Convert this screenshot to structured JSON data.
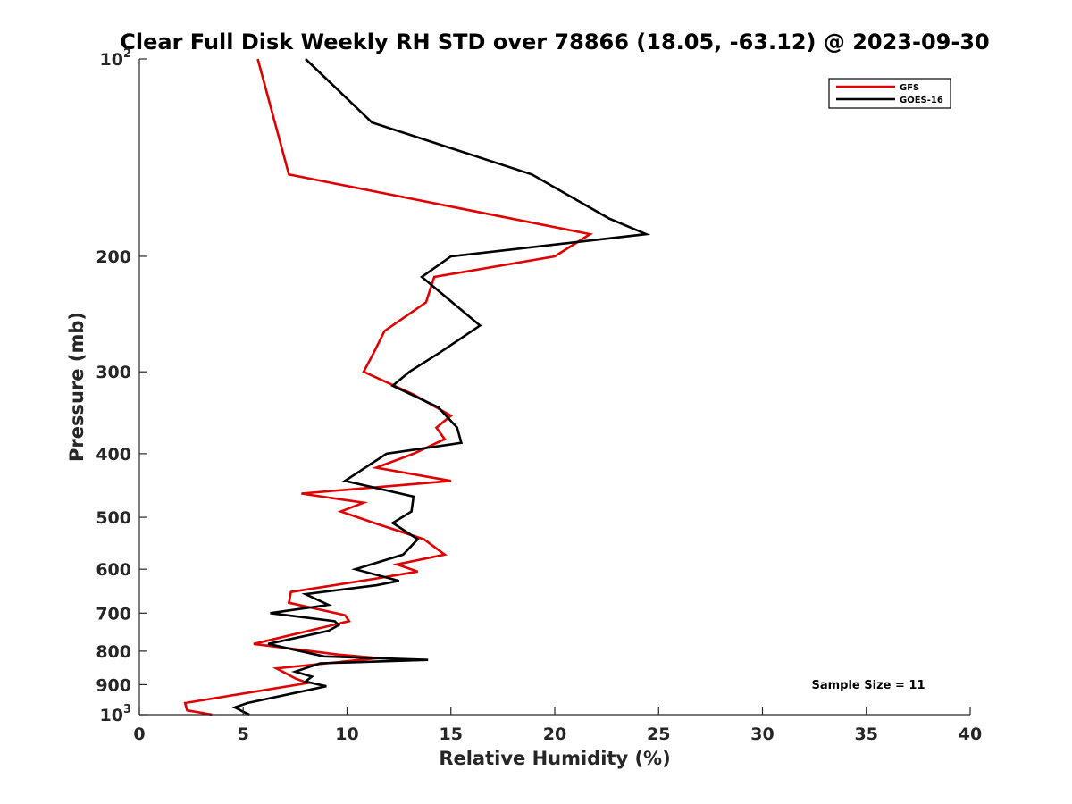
{
  "chart_data": {
    "type": "line",
    "title": "Clear Full Disk Weekly RH STD over 78866 (18.05, -63.12) @ 2023-09-30",
    "xlabel": "Relative Humidity (%)",
    "ylabel": "Pressure (mb)",
    "xlim": [
      0,
      40
    ],
    "ylim": [
      100,
      1000
    ],
    "y_scale": "log",
    "y_reversed": true,
    "x_ticks": [
      "0",
      "5",
      "10",
      "15",
      "20",
      "25",
      "30",
      "35",
      "40"
    ],
    "y_ticks": [
      {
        "value": 100,
        "base": "10",
        "sup": "2"
      },
      {
        "value": 200,
        "label": "200"
      },
      {
        "value": 300,
        "label": "300"
      },
      {
        "value": 400,
        "label": "400"
      },
      {
        "value": 500,
        "label": "500"
      },
      {
        "value": 600,
        "label": "600"
      },
      {
        "value": 700,
        "label": "700"
      },
      {
        "value": 800,
        "label": "800"
      },
      {
        "value": 900,
        "label": "900"
      },
      {
        "value": 1000,
        "base": "10",
        "sup": "3"
      }
    ],
    "grid": false,
    "legend_position": "top-right",
    "annotation": "Sample Size = 11",
    "series": [
      {
        "name": "GFS",
        "color": "#e00000",
        "points": [
          [
            5.7,
            100
          ],
          [
            7.2,
            150
          ],
          [
            21.7,
            185
          ],
          [
            20.0,
            200
          ],
          [
            14.2,
            215
          ],
          [
            13.8,
            235
          ],
          [
            11.8,
            260
          ],
          [
            11.3,
            280
          ],
          [
            10.8,
            300
          ],
          [
            13.2,
            325
          ],
          [
            15.0,
            350
          ],
          [
            14.3,
            365
          ],
          [
            14.7,
            380
          ],
          [
            13.2,
            400
          ],
          [
            11.4,
            420
          ],
          [
            15.0,
            440
          ],
          [
            7.8,
            460
          ],
          [
            10.8,
            475
          ],
          [
            9.7,
            490
          ],
          [
            11.3,
            510
          ],
          [
            13.7,
            540
          ],
          [
            14.7,
            570
          ],
          [
            12.4,
            590
          ],
          [
            13.4,
            605
          ],
          [
            11.4,
            620
          ],
          [
            7.3,
            650
          ],
          [
            7.2,
            675
          ],
          [
            9.9,
            705
          ],
          [
            10.1,
            720
          ],
          [
            5.5,
            780
          ],
          [
            9.6,
            810
          ],
          [
            11.5,
            820
          ],
          [
            6.6,
            850
          ],
          [
            7.5,
            880
          ],
          [
            8.1,
            895
          ],
          [
            2.2,
            960
          ],
          [
            2.3,
            985
          ],
          [
            3.5,
            1000
          ]
        ]
      },
      {
        "name": "GOES-16",
        "color": "#000000",
        "points": [
          [
            8.0,
            100
          ],
          [
            11.2,
            125
          ],
          [
            18.9,
            150
          ],
          [
            22.6,
            175
          ],
          [
            24.4,
            185
          ],
          [
            15.0,
            200
          ],
          [
            13.6,
            215
          ],
          [
            16.4,
            255
          ],
          [
            14.5,
            280
          ],
          [
            13.0,
            300
          ],
          [
            12.2,
            315
          ],
          [
            14.4,
            340
          ],
          [
            15.3,
            365
          ],
          [
            15.5,
            385
          ],
          [
            11.9,
            400
          ],
          [
            9.9,
            440
          ],
          [
            13.2,
            465
          ],
          [
            13.1,
            490
          ],
          [
            12.2,
            510
          ],
          [
            13.4,
            540
          ],
          [
            12.7,
            570
          ],
          [
            10.4,
            600
          ],
          [
            12.5,
            625
          ],
          [
            11.4,
            635
          ],
          [
            8.0,
            655
          ],
          [
            9.1,
            680
          ],
          [
            6.3,
            700
          ],
          [
            9.4,
            720
          ],
          [
            9.6,
            730
          ],
          [
            9.1,
            745
          ],
          [
            6.2,
            780
          ],
          [
            8.9,
            815
          ],
          [
            13.9,
            825
          ],
          [
            8.7,
            835
          ],
          [
            7.5,
            860
          ],
          [
            8.3,
            875
          ],
          [
            8.0,
            890
          ],
          [
            9.0,
            905
          ],
          [
            5.2,
            960
          ],
          [
            4.6,
            975
          ],
          [
            5.0,
            990
          ],
          [
            5.3,
            1000
          ]
        ]
      }
    ]
  }
}
